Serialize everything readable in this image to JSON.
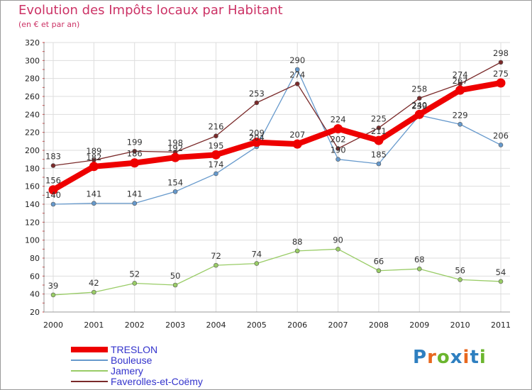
{
  "title": "Evolution des Impôts locaux par Habitant",
  "subtitle": "(en € et par an)",
  "logo": {
    "text": "Proxiti",
    "colors": [
      "#2e7fc0",
      "#e8681f",
      "#6bb52e",
      "#2e7fc0",
      "#e8681f",
      "#2e7fc0",
      "#6bb52e"
    ]
  },
  "chart_data": {
    "type": "line",
    "x": [
      "2000",
      "2001",
      "2002",
      "2003",
      "2004",
      "2005",
      "2006",
      "2007",
      "2008",
      "2009",
      "2010",
      "2011"
    ],
    "ylim": [
      20,
      320
    ],
    "yticks": [
      20,
      40,
      60,
      80,
      100,
      120,
      140,
      160,
      180,
      200,
      220,
      240,
      260,
      280,
      300,
      320
    ],
    "grid": true,
    "legend_position": "bottom-left",
    "series": [
      {
        "name": "TRESLON",
        "color": "#ee0000",
        "values": [
          156,
          182,
          186,
          192,
          195,
          209,
          207,
          224,
          211,
          240,
          267,
          275
        ],
        "labels": [
          "156",
          "182",
          "186",
          "192",
          "195",
          "209",
          "207",
          "224",
          "211",
          "240",
          "267",
          "275"
        ]
      },
      {
        "name": "Bouleuse",
        "color": "#6699cc",
        "values": [
          140,
          141,
          141,
          154,
          174,
          204,
          290,
          190,
          185,
          239,
          229,
          206
        ],
        "labels": [
          "140",
          "141",
          "141",
          "154",
          "174",
          "204",
          "290",
          "190",
          "185",
          "239",
          "229",
          "206"
        ]
      },
      {
        "name": "Jamery",
        "color": "#99cc66",
        "values": [
          39,
          42,
          52,
          50,
          72,
          74,
          88,
          90,
          66,
          68,
          56,
          54
        ],
        "labels": [
          "39",
          "42",
          "52",
          "50",
          "72",
          "74",
          "88",
          "90",
          "66",
          "68",
          "56",
          "54"
        ]
      },
      {
        "name": "Faverolles-et-Coëmy",
        "color": "#7a2a2a",
        "values": [
          183,
          189,
          199,
          198,
          216,
          253,
          274,
          202,
          225,
          258,
          274,
          298
        ],
        "labels": [
          "183",
          "189",
          "199",
          "198",
          "216",
          "253",
          "274",
          "202",
          "225",
          "258",
          "274",
          "298"
        ]
      }
    ]
  }
}
